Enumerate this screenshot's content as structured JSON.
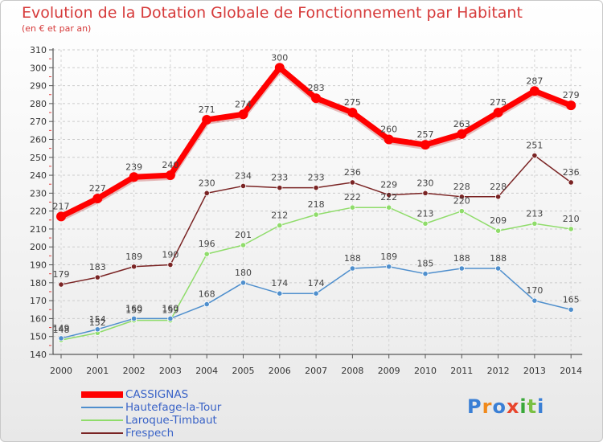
{
  "header": {
    "title": "Evolution de la Dotation Globale de Fonctionnement par Habitant",
    "subtitle": "(en € et par an)"
  },
  "logo": {
    "text": "Proxiti",
    "colors": [
      "#3a7fd5",
      "#f08a1c",
      "#3a7fd5",
      "#e8452c",
      "#3aa83a",
      "#7ac043",
      "#3a7fd5"
    ]
  },
  "chart_data": {
    "type": "line",
    "title": "Evolution de la Dotation Globale de Fonctionnement par Habitant",
    "subtitle": "(en € et par an)",
    "xlabel": "",
    "ylabel": "",
    "ylim": [
      140,
      310
    ],
    "yticks": [
      140,
      150,
      160,
      170,
      180,
      190,
      200,
      210,
      220,
      230,
      240,
      250,
      260,
      270,
      280,
      290,
      300,
      310
    ],
    "categories": [
      "2000",
      "2001",
      "2002",
      "2003",
      "2004",
      "2005",
      "2006",
      "2007",
      "2008",
      "2009",
      "2010",
      "2011",
      "2012",
      "2013",
      "2014"
    ],
    "legend_position": "bottom-left",
    "series": [
      {
        "name": "CASSIGNAS",
        "color": "#ff0000",
        "values": [
          217,
          227,
          239,
          240,
          271,
          274,
          300,
          283,
          275,
          260,
          257,
          263,
          275,
          287,
          279
        ]
      },
      {
        "name": "Hautefage-la-Tour",
        "color": "#4f8fcd",
        "values": [
          149,
          154,
          160,
          160,
          168,
          180,
          174,
          174,
          188,
          189,
          185,
          188,
          188,
          170,
          165
        ]
      },
      {
        "name": "Laroque-Timbaut",
        "color": "#8fdc6a",
        "values": [
          148,
          152,
          159,
          159,
          196,
          201,
          212,
          218,
          222,
          222,
          213,
          220,
          209,
          213,
          210
        ]
      },
      {
        "name": "Frespech",
        "color": "#7a2424",
        "values": [
          179,
          183,
          189,
          190,
          230,
          234,
          233,
          233,
          236,
          229,
          230,
          228,
          228,
          251,
          236
        ]
      }
    ]
  }
}
